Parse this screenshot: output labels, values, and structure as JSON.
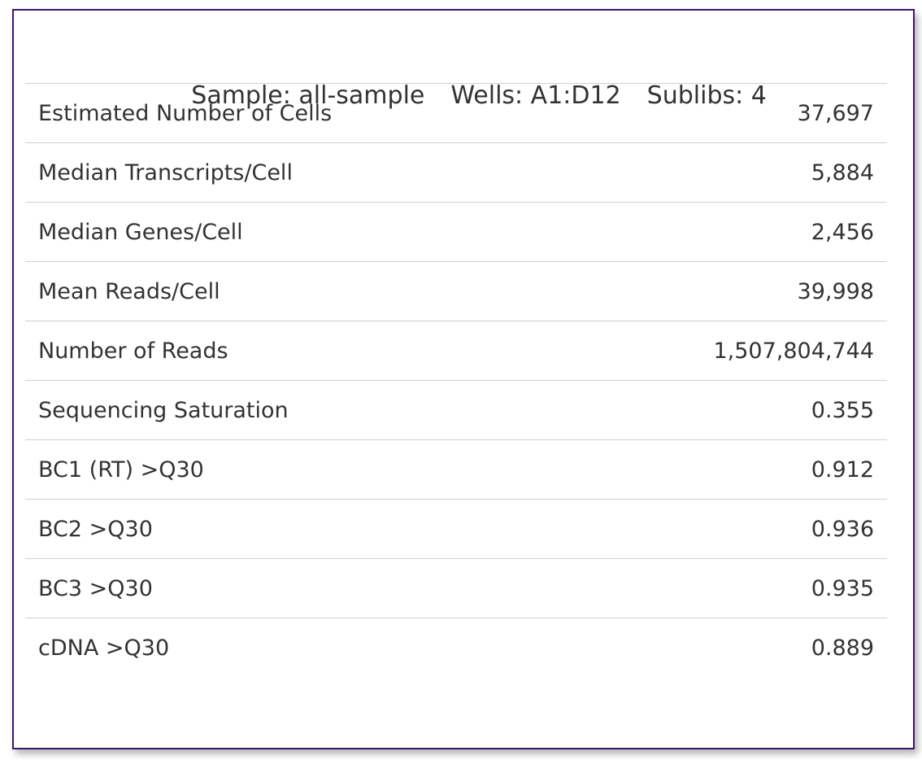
{
  "header": {
    "sample": "Sample: all-sample",
    "wells": "Wells: A1:D12",
    "sublibs": "Sublibs: 4"
  },
  "metrics": [
    {
      "label": "Estimated Number of Cells",
      "value": "37,697"
    },
    {
      "label": "Median Transcripts/Cell",
      "value": "5,884"
    },
    {
      "label": "Median Genes/Cell",
      "value": "2,456"
    },
    {
      "label": "Mean Reads/Cell",
      "value": "39,998"
    },
    {
      "label": "Number of Reads",
      "value": "1,507,804,744"
    },
    {
      "label": "Sequencing Saturation",
      "value": "0.355"
    },
    {
      "label": "BC1 (RT) >Q30",
      "value": "0.912"
    },
    {
      "label": "BC2 >Q30",
      "value": "0.936"
    },
    {
      "label": "BC3 >Q30",
      "value": "0.935"
    },
    {
      "label": "cDNA >Q30",
      "value": "0.889"
    }
  ],
  "colors": {
    "border": "#3b1670",
    "divider": "#d0d0d0",
    "text": "#333333"
  }
}
